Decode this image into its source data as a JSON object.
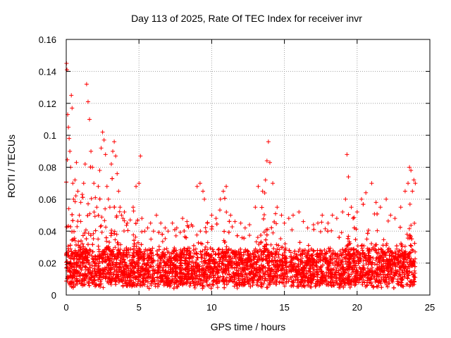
{
  "chart_data": {
    "type": "scatter",
    "title": "Day 113 of 2025, Rate Of TEC Index for receiver invr",
    "xlabel": "GPS time / hours",
    "ylabel": "ROTI / TECUs",
    "xlim": [
      0,
      25
    ],
    "ylim": [
      0,
      0.16
    ],
    "xticks": [
      0,
      5,
      10,
      15,
      20,
      25
    ],
    "yticks": [
      0,
      0.02,
      0.04,
      0.06,
      0.08,
      0.1,
      0.12,
      0.14,
      0.16
    ],
    "xtick_labels": [
      "0",
      "5",
      "10",
      "15",
      "20",
      "25"
    ],
    "ytick_labels": [
      "0",
      "0.02",
      "0.04",
      "0.06",
      "0.08",
      "0.1",
      "0.12",
      "0.14",
      "0.16"
    ],
    "grid": true,
    "marker": "+",
    "series": [
      {
        "name": "ROTI",
        "color": "#ff0000",
        "x": [
          0.02,
          0.05,
          0.1,
          0.15,
          0.2,
          0.25,
          0.3,
          0.35,
          0.4,
          0.45,
          0.5,
          0.6,
          0.7,
          0.8,
          0.9,
          1.0,
          1.1,
          1.2,
          1.3,
          1.4,
          1.5,
          1.6,
          1.7,
          1.8,
          1.9,
          2.0,
          2.1,
          2.2,
          2.3,
          2.4,
          2.5,
          2.6,
          2.7,
          2.8,
          2.9,
          3.0,
          3.1,
          3.2,
          3.3,
          3.4,
          3.5,
          3.6,
          3.7,
          3.8,
          3.9,
          4.0,
          4.2,
          4.4,
          4.6,
          4.8,
          5.0,
          5.1,
          5.2,
          5.4,
          5.6,
          5.8,
          6.0,
          6.2,
          6.5,
          6.8,
          7.0,
          7.3,
          7.6,
          8.0,
          8.3,
          8.6,
          9.0,
          9.2,
          9.4,
          9.5,
          9.7,
          10.0,
          10.3,
          10.6,
          10.8,
          11.0,
          11.3,
          11.6,
          12.0,
          12.3,
          12.6,
          13.0,
          13.2,
          13.5,
          13.7,
          13.8,
          13.9,
          14.0,
          14.2,
          14.5,
          14.8,
          15.0,
          15.3,
          15.6,
          16.0,
          16.3,
          16.6,
          17.0,
          17.3,
          17.6,
          18.0,
          18.3,
          18.6,
          19.0,
          19.2,
          19.3,
          19.4,
          19.6,
          20.0,
          20.3,
          20.6,
          21.0,
          21.3,
          21.6,
          22.0,
          22.3,
          22.6,
          23.0,
          23.3,
          23.5,
          23.6,
          23.7,
          23.8,
          23.9,
          24.0
        ],
        "y": [
          0.145,
          0.141,
          0.113,
          0.105,
          0.098,
          0.09,
          0.08,
          0.125,
          0.117,
          0.07,
          0.06,
          0.072,
          0.083,
          0.065,
          0.05,
          0.058,
          0.063,
          0.07,
          0.082,
          0.132,
          0.121,
          0.11,
          0.09,
          0.08,
          0.07,
          0.061,
          0.055,
          0.068,
          0.078,
          0.092,
          0.102,
          0.097,
          0.088,
          0.068,
          0.06,
          0.055,
          0.082,
          0.09,
          0.096,
          0.087,
          0.076,
          0.065,
          0.055,
          0.05,
          0.048,
          0.052,
          0.045,
          0.047,
          0.055,
          0.068,
          0.07,
          0.087,
          0.048,
          0.04,
          0.042,
          0.045,
          0.04,
          0.05,
          0.045,
          0.042,
          0.04,
          0.045,
          0.042,
          0.048,
          0.046,
          0.044,
          0.068,
          0.07,
          0.065,
          0.06,
          0.045,
          0.05,
          0.048,
          0.06,
          0.065,
          0.068,
          0.05,
          0.046,
          0.045,
          0.042,
          0.044,
          0.055,
          0.068,
          0.065,
          0.072,
          0.084,
          0.096,
          0.083,
          0.07,
          0.055,
          0.05,
          0.045,
          0.048,
          0.05,
          0.052,
          0.046,
          0.042,
          0.044,
          0.045,
          0.05,
          0.045,
          0.05,
          0.048,
          0.052,
          0.06,
          0.088,
          0.074,
          0.055,
          0.052,
          0.06,
          0.064,
          0.07,
          0.058,
          0.055,
          0.06,
          0.05,
          0.048,
          0.055,
          0.065,
          0.07,
          0.08,
          0.078,
          0.065,
          0.072,
          0.07
        ]
      }
    ]
  }
}
